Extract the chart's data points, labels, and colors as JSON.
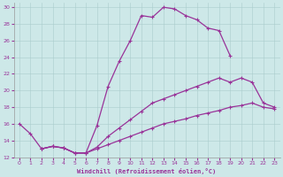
{
  "xlabel": "Windchill (Refroidissement éolien,°C)",
  "bg_color": "#cde8e8",
  "line_color": "#993399",
  "xlim": [
    -0.5,
    23.5
  ],
  "ylim": [
    12,
    30.5
  ],
  "xticks": [
    0,
    1,
    2,
    3,
    4,
    5,
    6,
    7,
    8,
    9,
    10,
    11,
    12,
    13,
    14,
    15,
    16,
    17,
    18,
    19,
    20,
    21,
    22,
    23
  ],
  "yticks": [
    12,
    14,
    16,
    18,
    20,
    22,
    24,
    26,
    28,
    30
  ],
  "lines": [
    {
      "x": [
        0,
        1,
        2,
        3,
        4,
        5,
        6,
        7,
        8,
        9,
        10,
        11,
        12,
        13,
        14,
        15,
        16,
        17,
        18,
        19
      ],
      "y": [
        16.0,
        14.8,
        13.0,
        13.3,
        13.1,
        12.5,
        12.5,
        15.8,
        20.5,
        23.5,
        26.0,
        29.0,
        28.8,
        30.0,
        29.8,
        29.0,
        28.5,
        27.5,
        27.2,
        24.2
      ]
    },
    {
      "x": [
        2,
        3,
        4,
        5,
        6,
        7,
        8,
        9,
        10,
        11,
        12,
        13,
        14,
        15,
        16,
        17,
        18,
        19,
        20,
        21,
        22,
        23
      ],
      "y": [
        13.0,
        13.3,
        13.1,
        12.5,
        12.5,
        13.2,
        14.5,
        15.5,
        16.5,
        17.5,
        18.5,
        19.0,
        19.5,
        20.0,
        20.5,
        21.0,
        21.5,
        21.0,
        21.5,
        21.0,
        18.5,
        18.0
      ]
    },
    {
      "x": [
        2,
        3,
        4,
        5,
        6,
        7,
        8,
        9,
        10,
        11,
        12,
        13,
        14,
        15,
        16,
        17,
        18,
        19,
        20,
        21,
        22,
        23
      ],
      "y": [
        13.0,
        13.3,
        13.1,
        12.5,
        12.5,
        13.0,
        13.5,
        14.0,
        14.5,
        15.0,
        15.5,
        16.0,
        16.3,
        16.6,
        17.0,
        17.3,
        17.6,
        18.0,
        18.2,
        18.5,
        18.0,
        17.8
      ]
    }
  ]
}
